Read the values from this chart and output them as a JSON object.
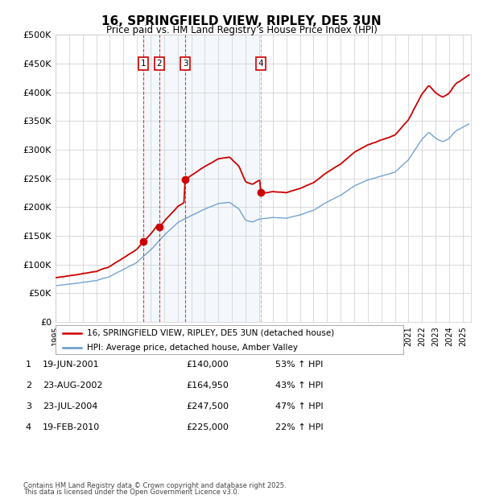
{
  "title": "16, SPRINGFIELD VIEW, RIPLEY, DE5 3UN",
  "subtitle": "Price paid vs. HM Land Registry's House Price Index (HPI)",
  "legend_line1": "16, SPRINGFIELD VIEW, RIPLEY, DE5 3UN (detached house)",
  "legend_line2": "HPI: Average price, detached house, Amber Valley",
  "footer1": "Contains HM Land Registry data © Crown copyright and database right 2025.",
  "footer2": "This data is licensed under the Open Government Licence v3.0.",
  "ylim": [
    0,
    500000
  ],
  "yticks": [
    0,
    50000,
    100000,
    150000,
    200000,
    250000,
    300000,
    350000,
    400000,
    450000,
    500000
  ],
  "ytick_labels": [
    "£0",
    "£50K",
    "£100K",
    "£150K",
    "£200K",
    "£250K",
    "£300K",
    "£350K",
    "£400K",
    "£450K",
    "£500K"
  ],
  "sale_prices": [
    140000,
    164950,
    247500,
    225000
  ],
  "sale_labels": [
    "1",
    "2",
    "3",
    "4"
  ],
  "sale_pcts": [
    "53% ↑ HPI",
    "43% ↑ HPI",
    "47% ↑ HPI",
    "22% ↑ HPI"
  ],
  "sale_label_dates": [
    "19-JUN-2001",
    "23-AUG-2002",
    "23-JUL-2004",
    "19-FEB-2010"
  ],
  "hpi_color": "#6699cc",
  "sale_color": "#cc0000",
  "background_color": "#ffffff",
  "grid_color": "#cccccc",
  "hpi_control_points": [
    [
      1995.0,
      63000
    ],
    [
      1996.0,
      66000
    ],
    [
      1997.0,
      69000
    ],
    [
      1998.0,
      73000
    ],
    [
      1999.0,
      80000
    ],
    [
      2000.0,
      92000
    ],
    [
      2001.0,
      105000
    ],
    [
      2002.0,
      126000
    ],
    [
      2003.0,
      151000
    ],
    [
      2004.0,
      173000
    ],
    [
      2005.0,
      185000
    ],
    [
      2006.0,
      196000
    ],
    [
      2007.0,
      207000
    ],
    [
      2007.8,
      210000
    ],
    [
      2008.5,
      198000
    ],
    [
      2009.0,
      178000
    ],
    [
      2009.5,
      175000
    ],
    [
      2010.0,
      180000
    ],
    [
      2011.0,
      183000
    ],
    [
      2012.0,
      182000
    ],
    [
      2013.0,
      188000
    ],
    [
      2014.0,
      196000
    ],
    [
      2015.0,
      210000
    ],
    [
      2016.0,
      222000
    ],
    [
      2017.0,
      238000
    ],
    [
      2018.0,
      248000
    ],
    [
      2019.0,
      256000
    ],
    [
      2020.0,
      262000
    ],
    [
      2021.0,
      284000
    ],
    [
      2022.0,
      320000
    ],
    [
      2022.5,
      332000
    ],
    [
      2023.0,
      322000
    ],
    [
      2023.5,
      316000
    ],
    [
      2024.0,
      322000
    ],
    [
      2024.5,
      335000
    ],
    [
      2025.5,
      348000
    ]
  ],
  "sale_times": [
    2001.46,
    2002.64,
    2004.55,
    2010.13
  ],
  "xlim": [
    1995.0,
    2025.6
  ]
}
